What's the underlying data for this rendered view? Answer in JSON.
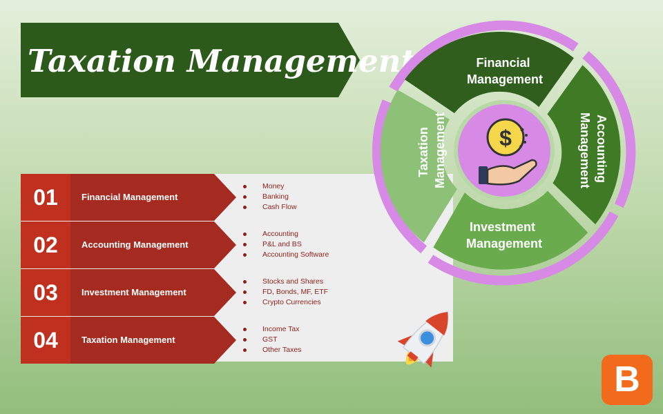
{
  "title": "Taxation Management",
  "rows": [
    {
      "number": "01",
      "title": "Financial Management",
      "bullets": [
        "Money",
        "Banking",
        "Cash Flow"
      ]
    },
    {
      "number": "02",
      "title": "Accounting Management",
      "bullets": [
        "Accounting",
        "P&L and BS",
        "Accounting Software"
      ]
    },
    {
      "number": "03",
      "title": "Investment Management",
      "bullets": [
        "Stocks and Shares",
        "FD, Bonds, MF, ETF",
        "Crypto Currencies"
      ]
    },
    {
      "number": "04",
      "title": "Taxation Management",
      "bullets": [
        "Income Tax",
        "GST",
        "Other Taxes"
      ]
    }
  ],
  "cycle": {
    "top": [
      "Financial",
      "Management"
    ],
    "right": [
      "Accounting",
      "Management"
    ],
    "bottom": [
      "Investment",
      "Management"
    ],
    "left": [
      "Taxation",
      "Management"
    ],
    "center_icon": "money-hand-icon"
  },
  "logo_letter": "B",
  "decor_icon": "rocket-icon",
  "colors": {
    "banner": "#2c5a1b",
    "row_red": "#a52a1f",
    "row_red_dark": "#8e1f18",
    "ring": "#d68ae6",
    "segment_top": "#2f5e1d",
    "segment_right": "#3f7a25",
    "segment_bottom": "#6aab4e",
    "segment_left": "#8cc177",
    "center": "#d68ae6",
    "logo": "#f26a1b"
  }
}
